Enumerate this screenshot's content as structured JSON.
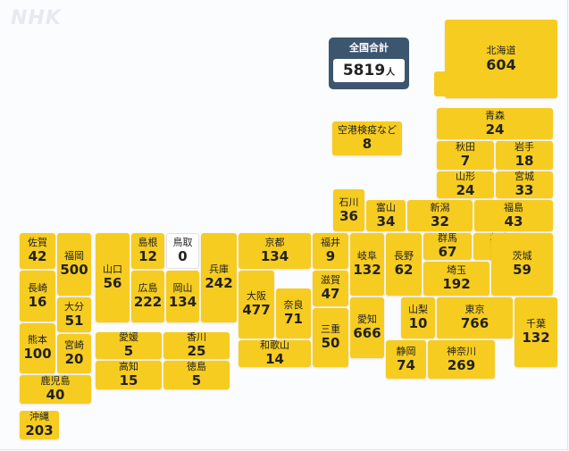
{
  "logo": "NHK",
  "total": {
    "label": "全国合計",
    "value": "5819",
    "unit": "人"
  },
  "colors": {
    "tile": "#f6cc21",
    "zero_tile": "#ffffff",
    "total_bg": "#3d5670",
    "logo": "#e6eaee"
  },
  "prefectures": [
    {
      "name": "北海道",
      "value": "604"
    },
    {
      "name": "青森",
      "value": "24"
    },
    {
      "name": "秋田",
      "value": "7"
    },
    {
      "name": "岩手",
      "value": "18"
    },
    {
      "name": "山形",
      "value": "24"
    },
    {
      "name": "宮城",
      "value": "33"
    },
    {
      "name": "福島",
      "value": "43"
    },
    {
      "name": "石川",
      "value": "36"
    },
    {
      "name": "富山",
      "value": "34"
    },
    {
      "name": "新潟",
      "value": "32"
    },
    {
      "name": "群馬",
      "value": "67"
    },
    {
      "name": "栃木",
      "value": "37"
    },
    {
      "name": "茨城",
      "value": "59"
    },
    {
      "name": "埼玉",
      "value": "192"
    },
    {
      "name": "長野",
      "value": "62"
    },
    {
      "name": "岐阜",
      "value": "132"
    },
    {
      "name": "福井",
      "value": "9"
    },
    {
      "name": "滋賀",
      "value": "47"
    },
    {
      "name": "京都",
      "value": "134"
    },
    {
      "name": "大阪",
      "value": "477"
    },
    {
      "name": "奈良",
      "value": "71"
    },
    {
      "name": "和歌山",
      "value": "14"
    },
    {
      "name": "三重",
      "value": "50"
    },
    {
      "name": "愛知",
      "value": "666"
    },
    {
      "name": "山梨",
      "value": "10"
    },
    {
      "name": "東京",
      "value": "766"
    },
    {
      "name": "千葉",
      "value": "132"
    },
    {
      "name": "静岡",
      "value": "74"
    },
    {
      "name": "神奈川",
      "value": "269"
    },
    {
      "name": "兵庫",
      "value": "242"
    },
    {
      "name": "鳥取",
      "value": "0"
    },
    {
      "name": "岡山",
      "value": "134"
    },
    {
      "name": "島根",
      "value": "12"
    },
    {
      "name": "広島",
      "value": "222"
    },
    {
      "name": "山口",
      "value": "56"
    },
    {
      "name": "愛媛",
      "value": "5"
    },
    {
      "name": "香川",
      "value": "25"
    },
    {
      "name": "高知",
      "value": "15"
    },
    {
      "name": "徳島",
      "value": "5"
    },
    {
      "name": "佐賀",
      "value": "42"
    },
    {
      "name": "福岡",
      "value": "500"
    },
    {
      "name": "長崎",
      "value": "16"
    },
    {
      "name": "大分",
      "value": "51"
    },
    {
      "name": "熊本",
      "value": "100"
    },
    {
      "name": "宮崎",
      "value": "20"
    },
    {
      "name": "鹿児島",
      "value": "40"
    },
    {
      "name": "沖縄",
      "value": "203"
    },
    {
      "name": "空港検疫など",
      "value": "8"
    }
  ]
}
